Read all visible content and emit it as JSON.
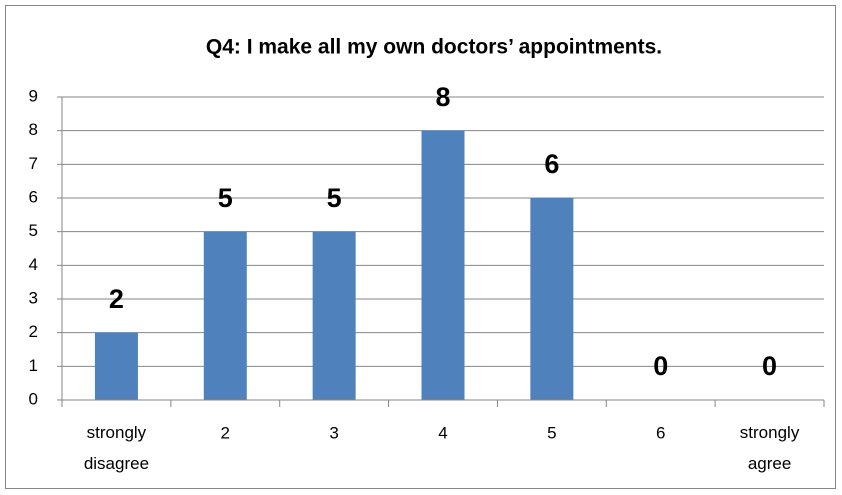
{
  "chart_data": {
    "type": "bar",
    "title": "Q4: I make all my own doctors’ appointments.",
    "categories": [
      "strongly disagree",
      "2",
      "3",
      "4",
      "5",
      "6",
      "strongly agree"
    ],
    "values": [
      2,
      5,
      5,
      8,
      6,
      0,
      0
    ],
    "color": "#4f81bd",
    "ylim": [
      0,
      9
    ],
    "yticks": [
      0,
      1,
      2,
      3,
      4,
      5,
      6,
      7,
      8,
      9
    ],
    "grid": true
  }
}
